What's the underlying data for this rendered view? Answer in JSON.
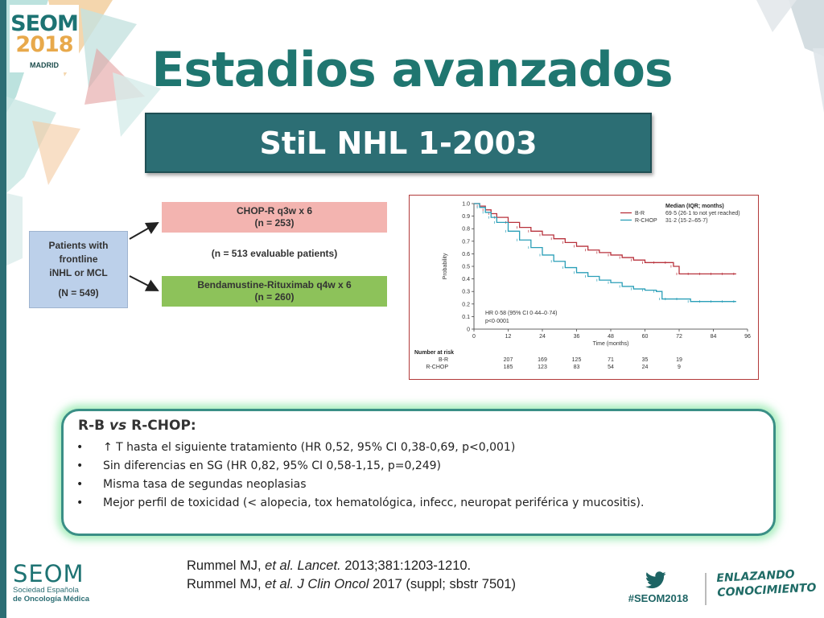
{
  "header": {
    "logo_seom": "SEOM",
    "logo_year": "2018",
    "logo_city": "MADRID",
    "title": "Estadios avanzados"
  },
  "banner": {
    "text": "StiL NHL 1-2003"
  },
  "study_design": {
    "patients_lines": [
      "Patients with",
      "frontline",
      "iNHL or MCL"
    ],
    "patients_n": "(N = 549)",
    "arm1_name": "CHOP-R q3w x 6",
    "arm1_n": "(n = 253)",
    "evaluable": "(n = 513 evaluable patients)",
    "arm2_name": "Bendamustine-Rituximab q4w x 6",
    "arm2_n": "(n = 260)"
  },
  "chart_data": {
    "type": "line",
    "xlabel": "Time (months)",
    "ylabel": "Probability",
    "xticks": [
      0,
      12,
      24,
      36,
      48,
      60,
      72,
      84,
      96
    ],
    "yticks": [
      0,
      0.1,
      0.2,
      0.3,
      0.4,
      0.5,
      0.6,
      0.7,
      0.8,
      0.9,
      1.0
    ],
    "xlim": [
      0,
      96
    ],
    "ylim": [
      0,
      1.0
    ],
    "legend_title": "Median (IQR; months)",
    "series": [
      {
        "name": "B-R",
        "median_text": "69·5 (26·1 to not yet reached)",
        "color": "#b8323c",
        "x": [
          0,
          2,
          4,
          6,
          8,
          12,
          16,
          20,
          24,
          28,
          32,
          36,
          40,
          44,
          48,
          52,
          56,
          60,
          64,
          68,
          70,
          72,
          76,
          80,
          84,
          88,
          92
        ],
        "y": [
          1.0,
          0.98,
          0.95,
          0.92,
          0.89,
          0.85,
          0.81,
          0.78,
          0.75,
          0.72,
          0.69,
          0.66,
          0.63,
          0.61,
          0.59,
          0.57,
          0.55,
          0.53,
          0.53,
          0.53,
          0.5,
          0.44,
          0.44,
          0.44,
          0.44,
          0.44,
          0.44
        ]
      },
      {
        "name": "R-CHOP",
        "median_text": "31·2 (15·2–65·7)",
        "color": "#2a9fb8",
        "x": [
          0,
          2,
          4,
          6,
          8,
          12,
          16,
          20,
          24,
          28,
          32,
          36,
          40,
          44,
          48,
          52,
          56,
          60,
          64,
          66,
          68,
          72,
          76,
          80,
          84,
          88,
          92
        ],
        "y": [
          1.0,
          0.97,
          0.93,
          0.89,
          0.85,
          0.78,
          0.71,
          0.65,
          0.59,
          0.54,
          0.49,
          0.45,
          0.42,
          0.39,
          0.37,
          0.34,
          0.32,
          0.31,
          0.3,
          0.24,
          0.24,
          0.24,
          0.22,
          0.22,
          0.22,
          0.22,
          0.22
        ]
      }
    ],
    "hr_text": "HR 0·58 (95% CI 0·44–0·74)",
    "p_text": "p<0·0001",
    "risk_table": {
      "title": "Number at risk",
      "rows": [
        {
          "label": "B-R",
          "values": [
            "207",
            "169",
            "125",
            "71",
            "35",
            "19"
          ]
        },
        {
          "label": "R-CHOP",
          "values": [
            "185",
            "123",
            "83",
            "54",
            "24",
            "9"
          ]
        }
      ],
      "months": [
        12,
        24,
        36,
        48,
        60,
        72
      ]
    }
  },
  "findings": {
    "heading_a": "R-B ",
    "heading_vs": "vs",
    "heading_b": " R-CHOP:",
    "bullet_char": "•",
    "items": [
      "↑ T hasta el siguiente tratamiento (HR 0,52, 95% CI 0,38-0,69, p<0,001)",
      "Sin diferencias en SG (HR 0,82, 95% CI 0,58-1,15, p=0,249)",
      "Misma tasa de segundas neoplasias",
      "Mejor perfil de toxicidad (< alopecia, tox hematológica, infecc, neuropat periférica y mucositis)."
    ]
  },
  "references": {
    "ref1_authors": "Rummel MJ, ",
    "ref1_etal": "et al. Lancet.",
    "ref1_rest": " 2013;381:1203-1210.",
    "ref2_authors": "Rummel MJ, ",
    "ref2_etal": "et al. J Clin Oncol",
    "ref2_rest": " 2017 (suppl; sbstr 7501)"
  },
  "footer": {
    "seom_word": "SEOM",
    "seom_line1": "Sociedad Española",
    "seom_line2": "de Oncología Médica",
    "hashtag": "#SEOM2018",
    "slogan_line1": "ENLAZANDO",
    "slogan_line2": "CONOCIMIENTO"
  },
  "colors": {
    "teal": "#1f7670",
    "banner": "#2c6e74",
    "orange": "#e8a94b",
    "br_red": "#b8323c",
    "rchop_blue": "#2a9fb8"
  }
}
